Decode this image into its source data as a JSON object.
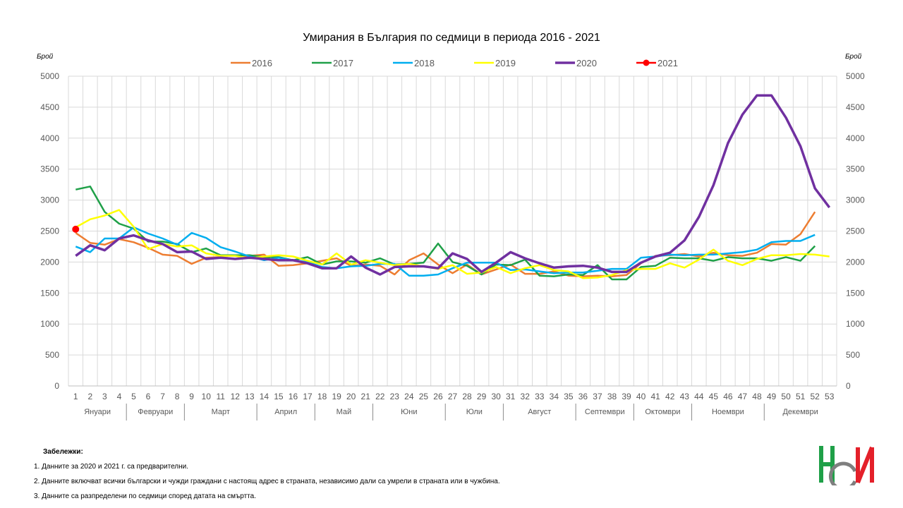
{
  "chart_data": {
    "type": "line",
    "title": "Умирания в България по седмици в периода 2016 - 2021",
    "ylabel_left": "Брой",
    "ylabel_right": "Брой",
    "ylim": [
      0,
      5000
    ],
    "y_ticks": [
      0,
      500,
      1000,
      1500,
      2000,
      2500,
      3000,
      3500,
      4000,
      4500,
      5000
    ],
    "x": [
      1,
      2,
      3,
      4,
      5,
      6,
      7,
      8,
      9,
      10,
      11,
      12,
      13,
      14,
      15,
      16,
      17,
      18,
      19,
      20,
      21,
      22,
      23,
      24,
      25,
      26,
      27,
      28,
      29,
      30,
      31,
      32,
      33,
      34,
      35,
      36,
      37,
      38,
      39,
      40,
      41,
      42,
      43,
      44,
      45,
      46,
      47,
      48,
      49,
      50,
      51,
      52,
      53
    ],
    "months": [
      {
        "label": "Януари",
        "start": 1,
        "end": 4
      },
      {
        "label": "Февруари",
        "start": 5,
        "end": 8
      },
      {
        "label": "Март",
        "start": 9,
        "end": 13
      },
      {
        "label": "Април",
        "start": 14,
        "end": 17
      },
      {
        "label": "Май",
        "start": 18,
        "end": 21
      },
      {
        "label": "Юни",
        "start": 22,
        "end": 26
      },
      {
        "label": "Юли",
        "start": 27,
        "end": 30
      },
      {
        "label": "Август",
        "start": 31,
        "end": 35
      },
      {
        "label": "Септември",
        "start": 36,
        "end": 39
      },
      {
        "label": "Октомври",
        "start": 40,
        "end": 43
      },
      {
        "label": "Ноември",
        "start": 44,
        "end": 48
      },
      {
        "label": "Декември",
        "start": 49,
        "end": 53
      }
    ],
    "grid": true,
    "legend_position": "top",
    "series": [
      {
        "name": "2016",
        "color": "#ED7D31",
        "values": [
          2470,
          2310,
          2280,
          2370,
          2320,
          2230,
          2120,
          2100,
          1970,
          2070,
          2080,
          2050,
          2100,
          2120,
          1940,
          1950,
          1980,
          2020,
          2060,
          1940,
          1960,
          1940,
          1800,
          2030,
          2140,
          1960,
          1820,
          1960,
          1800,
          1880,
          1960,
          1810,
          1810,
          1850,
          1780,
          1770,
          1780,
          1770,
          1790,
          1980,
          2100,
          2110,
          2130,
          2090,
          2150,
          2110,
          2100,
          2150,
          2290,
          2280,
          2450,
          2810,
          null
        ]
      },
      {
        "name": "2017",
        "color": "#1FA048",
        "values": [
          3170,
          3220,
          2810,
          2620,
          2540,
          2330,
          2330,
          2290,
          2160,
          2220,
          2110,
          2110,
          2110,
          2080,
          2080,
          2030,
          2080,
          1960,
          2010,
          2010,
          1990,
          2060,
          1960,
          1970,
          1990,
          2300,
          2000,
          1940,
          1800,
          1960,
          1950,
          2040,
          1780,
          1770,
          1800,
          1790,
          1950,
          1720,
          1720,
          1920,
          1940,
          2070,
          2060,
          2060,
          2020,
          2080,
          2060,
          2060,
          2020,
          2080,
          2020,
          2260,
          null
        ]
      },
      {
        "name": "2018",
        "color": "#00AEEF",
        "values": [
          2250,
          2160,
          2380,
          2380,
          2560,
          2460,
          2380,
          2280,
          2470,
          2390,
          2240,
          2170,
          2090,
          2030,
          2070,
          2030,
          2000,
          1920,
          1900,
          1930,
          1940,
          1970,
          1970,
          1780,
          1780,
          1800,
          1900,
          1990,
          1990,
          1990,
          1870,
          1880,
          1850,
          1820,
          1830,
          1830,
          1860,
          1890,
          1890,
          2070,
          2090,
          2120,
          2110,
          2120,
          2120,
          2140,
          2160,
          2200,
          2320,
          2340,
          2340,
          2440,
          null
        ]
      },
      {
        "name": "2019",
        "color": "#FFFF00",
        "values": [
          2560,
          2690,
          2750,
          2840,
          2570,
          2210,
          2290,
          2250,
          2270,
          2140,
          2100,
          2100,
          2060,
          2090,
          2110,
          2090,
          2020,
          1960,
          2140,
          1960,
          2030,
          1990,
          1950,
          1970,
          1930,
          1890,
          1950,
          1810,
          1830,
          1920,
          1820,
          1900,
          1950,
          1870,
          1850,
          1740,
          1750,
          1790,
          1870,
          1890,
          1890,
          1980,
          1910,
          2040,
          2200,
          2020,
          1950,
          2050,
          2110,
          2110,
          2130,
          2120,
          2090
        ]
      },
      {
        "name": "2020",
        "color": "#7030A0",
        "values": [
          2100,
          2270,
          2190,
          2380,
          2430,
          2350,
          2290,
          2160,
          2170,
          2050,
          2070,
          2050,
          2070,
          2050,
          2030,
          2030,
          1980,
          1900,
          1900,
          2090,
          1910,
          1800,
          1920,
          1930,
          1930,
          1900,
          2140,
          2050,
          1840,
          1990,
          2160,
          2060,
          1980,
          1910,
          1930,
          1940,
          1910,
          1840,
          1840,
          1990,
          2090,
          2150,
          2350,
          2730,
          3240,
          3920,
          4380,
          4690,
          4690,
          4330,
          3870,
          3190,
          2880
        ]
      },
      {
        "name": "2021",
        "color": "#FF0000",
        "marker": true,
        "values": [
          2530,
          null,
          null,
          null,
          null,
          null,
          null,
          null,
          null,
          null,
          null,
          null,
          null,
          null,
          null,
          null,
          null,
          null,
          null,
          null,
          null,
          null,
          null,
          null,
          null,
          null,
          null,
          null,
          null,
          null,
          null,
          null,
          null,
          null,
          null,
          null,
          null,
          null,
          null,
          null,
          null,
          null,
          null,
          null,
          null,
          null,
          null,
          null,
          null,
          null,
          null,
          null,
          null
        ]
      }
    ]
  },
  "notes": {
    "heading": "Забележки:",
    "items": [
      "1. Данните за 2020 и 2021 г. са предварителни.",
      "2. Данните включват всички български и чужди граждани с настоящ адрес в страната, независимо дали са умрели в страната или в чужбина.",
      "3. Данните са разпределени по седмици според датата на смъртта."
    ]
  },
  "logo": {
    "name": "nsi-logo",
    "colors": {
      "green": "#1FA048",
      "red": "#E4202A",
      "gray": "#7F7F7F"
    }
  }
}
